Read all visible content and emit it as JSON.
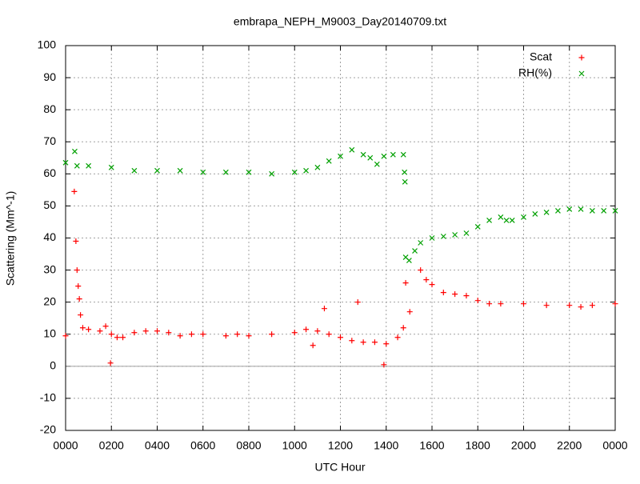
{
  "chart_data": {
    "type": "scatter",
    "title": "embrapa_NEPH_M9003_Day20140709.txt",
    "x_label": "UTC Hour",
    "y_label": "Scattering (Mm^-1)",
    "xlim": [
      0,
      24
    ],
    "xticks": [
      {
        "value": 0,
        "label": "0000"
      },
      {
        "value": 2,
        "label": "0200"
      },
      {
        "value": 4,
        "label": "0400"
      },
      {
        "value": 6,
        "label": "0600"
      },
      {
        "value": 8,
        "label": "0800"
      },
      {
        "value": 10,
        "label": "1000"
      },
      {
        "value": 12,
        "label": "1200"
      },
      {
        "value": 14,
        "label": "1400"
      },
      {
        "value": 16,
        "label": "1600"
      },
      {
        "value": 18,
        "label": "1800"
      },
      {
        "value": 20,
        "label": "2000"
      },
      {
        "value": 22,
        "label": "2200"
      },
      {
        "value": 24,
        "label": "0000"
      }
    ],
    "ylim": [
      -20,
      100
    ],
    "yticks": [
      -20,
      -10,
      0,
      10,
      20,
      30,
      40,
      50,
      60,
      70,
      80,
      90,
      100
    ],
    "grid": true,
    "zero_axis": true,
    "legend": "top-right",
    "series": [
      {
        "name": "Scat",
        "color": "#ff0000",
        "marker": "plus",
        "x": [
          0,
          0.38,
          0.45,
          0.5,
          0.55,
          0.6,
          0.65,
          0.75,
          1.0,
          1.5,
          1.75,
          1.96,
          2.0,
          2.25,
          2.5,
          3.0,
          3.5,
          4.0,
          4.5,
          5.0,
          5.5,
          6.0,
          7.0,
          7.5,
          8.0,
          9.0,
          10.0,
          10.5,
          10.8,
          11.0,
          11.3,
          11.5,
          12.0,
          12.5,
          12.76,
          13.0,
          13.5,
          13.9,
          14.0,
          14.5,
          14.75,
          14.85,
          15.03,
          15.5,
          15.75,
          16.0,
          16.5,
          17.0,
          17.5,
          18.0,
          18.5,
          19.0,
          20.0,
          21.0,
          22.0,
          22.5,
          23.0,
          24.0
        ],
        "values": [
          9.5,
          54.5,
          39,
          30,
          25,
          21,
          16,
          12,
          11.5,
          11,
          12.5,
          1,
          10,
          9,
          9,
          10.5,
          11,
          11,
          10.5,
          9.5,
          10,
          10,
          9.5,
          10,
          9.5,
          10,
          10.5,
          11.5,
          6.5,
          11,
          18,
          10,
          9,
          8,
          20,
          7.5,
          7.5,
          0.5,
          7,
          9,
          12,
          26,
          17,
          30,
          27,
          25.5,
          23,
          22.5,
          22,
          20.5,
          19.5,
          19.5,
          19.5,
          19,
          19,
          18.5,
          19,
          19.5
        ]
      },
      {
        "name": "RH(%)",
        "color": "#00a000",
        "marker": "cross",
        "x": [
          0,
          0.4,
          0.5,
          1,
          2,
          3,
          4,
          5,
          6,
          7,
          8,
          9,
          10,
          10.5,
          11,
          11.5,
          12,
          12.5,
          13,
          13.3,
          13.6,
          13.9,
          14.3,
          14.75,
          14.8,
          14.82,
          14.85,
          15.0,
          15.25,
          15.5,
          16,
          16.5,
          17,
          17.5,
          18,
          18.5,
          19,
          19.25,
          19.5,
          20,
          20.5,
          21,
          21.5,
          22,
          22.5,
          23,
          23.5,
          24
        ],
        "values": [
          63.5,
          67,
          62.5,
          62.5,
          62,
          61,
          61,
          61,
          60.5,
          60.5,
          60.5,
          60,
          60.5,
          61,
          62,
          64,
          65.5,
          67.5,
          66,
          65,
          63,
          65.5,
          66,
          66,
          60.5,
          57.5,
          34,
          33,
          36,
          38.5,
          40,
          40.5,
          41,
          41.5,
          43.5,
          45.5,
          46.5,
          45.5,
          45.5,
          46.5,
          47.5,
          48,
          48.5,
          49,
          49,
          48.5,
          48.5,
          48.5
        ]
      }
    ]
  }
}
